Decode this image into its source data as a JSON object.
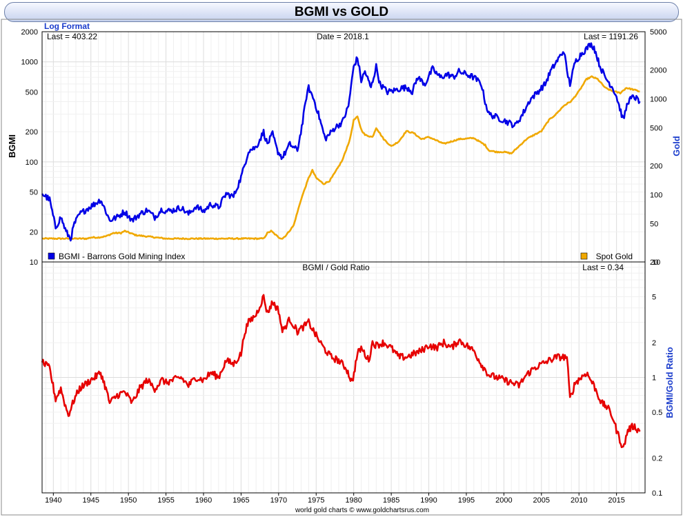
{
  "title": "BGMI vs GOLD",
  "footer": "world gold charts © www.goldchartsrus.com",
  "chart_data": [
    {
      "type": "line",
      "panel": "top",
      "format_label": "Log Format",
      "last_left": "Last = 403.22",
      "date_label": "Date = 2018.1",
      "last_right": "Last = 1191.26",
      "ylabel_left": "BGMI",
      "ylabel_right": "Gold",
      "yscale": "log",
      "ylim_left": [
        10,
        2000
      ],
      "ylim_right": [
        20,
        5000
      ],
      "yticks_left": [
        "2000",
        "1000",
        "500",
        "200",
        "100",
        "50",
        "20",
        "10"
      ],
      "yticks_right": [
        "5000",
        "2000",
        "1000",
        "500",
        "200",
        "100",
        "50",
        "20"
      ],
      "legend_left": "BGMI - Barrons Gold Mining Index",
      "legend_right": "Spot Gold",
      "legend_placement": "bottom",
      "colors": {
        "bgmi": "#0000e6",
        "gold": "#f0a800"
      },
      "series": [
        {
          "name": "BGMI - Barrons Gold Mining Index",
          "axis": "left",
          "x": [
            1938.5,
            1939.5,
            1940.3,
            1941,
            1941.7,
            1942.3,
            1942.8,
            1943.5,
            1944.5,
            1945.5,
            1946.3,
            1947,
            1947.5,
            1948.5,
            1949.5,
            1950.5,
            1951.5,
            1952.5,
            1953.5,
            1954.5,
            1955,
            1956,
            1957,
            1958,
            1959,
            1960,
            1961,
            1962,
            1963,
            1964,
            1965,
            1965.5,
            1966,
            1967,
            1968,
            1968.5,
            1969.2,
            1969.8,
            1970.5,
            1971.5,
            1972.5,
            1973.2,
            1973.7,
            1974,
            1974.7,
            1975.3,
            1976.2,
            1976.8,
            1977.5,
            1978.5,
            1979.3,
            1980,
            1980.5,
            1981,
            1981.5,
            1982.3,
            1983,
            1983.5,
            1984.5,
            1985.5,
            1986.5,
            1987.3,
            1987.8,
            1988.5,
            1989.5,
            1990.5,
            1991.5,
            1992.5,
            1993.3,
            1994,
            1995,
            1996,
            1997,
            1997.5,
            1998,
            1999,
            2000,
            2001,
            2001.5,
            2002.5,
            2003.5,
            2004.5,
            2005.5,
            2006.2,
            2007,
            2008,
            2008.4,
            2008.8,
            2009.5,
            2010.3,
            2011,
            2011.5,
            2012,
            2012.8,
            2013.5,
            2014.5,
            2015,
            2015.9,
            2016.5,
            2017.3,
            2018.1
          ],
          "values": [
            48,
            42,
            22,
            28,
            20,
            17,
            24,
            30,
            34,
            38,
            42,
            32,
            26,
            28,
            32,
            26,
            30,
            33,
            28,
            34,
            32,
            33,
            35,
            30,
            36,
            32,
            38,
            35,
            48,
            45,
            70,
            95,
            130,
            140,
            200,
            150,
            190,
            130,
            110,
            150,
            130,
            250,
            450,
            550,
            420,
            300,
            170,
            190,
            220,
            250,
            360,
            900,
            1100,
            650,
            800,
            550,
            900,
            600,
            500,
            520,
            550,
            550,
            500,
            700,
            600,
            850,
            700,
            750,
            700,
            800,
            750,
            700,
            600,
            400,
            300,
            280,
            260,
            240,
            230,
            300,
            420,
            500,
            600,
            800,
            1000,
            1300,
            800,
            600,
            1000,
            1200,
            1350,
            1500,
            1400,
            900,
            700,
            550,
            450,
            260,
            400,
            450,
            403.22
          ]
        },
        {
          "name": "Spot Gold",
          "axis": "right",
          "x": [
            1938.5,
            1943,
            1944.5,
            1945,
            1946,
            1947,
            1948,
            1949,
            1949.5,
            1951,
            1955,
            1960,
            1965,
            1967,
            1968,
            1968.5,
            1969,
            1970,
            1970.5,
            1971,
            1972,
            1973,
            1974,
            1974.5,
            1975,
            1976,
            1976.8,
            1977.5,
            1978.5,
            1979.5,
            1980,
            1980.5,
            1981,
            1981.5,
            1982.5,
            1983,
            1984,
            1985,
            1986,
            1987,
            1988,
            1989,
            1990,
            1992,
            1994,
            1996,
            1997.5,
            1998,
            1999,
            2000,
            2001,
            2002,
            2003,
            2004,
            2005,
            2006,
            2007,
            2008,
            2009,
            2010,
            2011,
            2011.7,
            2012.5,
            2013.5,
            2014.5,
            2015.5,
            2016.3,
            2017.2,
            2018.1
          ],
          "values": [
            35,
            35,
            35,
            36,
            36,
            37,
            40,
            40,
            42,
            38,
            35,
            35,
            35,
            35,
            35,
            40,
            42,
            36,
            35,
            38,
            48,
            90,
            150,
            180,
            150,
            130,
            140,
            170,
            230,
            380,
            600,
            650,
            480,
            420,
            400,
            500,
            380,
            320,
            360,
            460,
            440,
            380,
            400,
            340,
            380,
            390,
            330,
            290,
            280,
            280,
            270,
            320,
            380,
            420,
            460,
            600,
            700,
            850,
            950,
            1200,
            1600,
            1700,
            1600,
            1300,
            1200,
            1150,
            1300,
            1250,
            1191.26
          ]
        }
      ]
    },
    {
      "type": "line",
      "panel": "bottom",
      "title": "BGMI / Gold Ratio",
      "last_right": "Last = 0.34",
      "ylabel_right": "BGMI/Gold Ratio",
      "yscale": "log",
      "ylim": [
        0.1,
        10
      ],
      "yticks": [
        "10",
        "5",
        "2",
        "1",
        "0.5",
        "0.2",
        "0.1"
      ],
      "color": "#e60000",
      "x_ticks": [
        "1940",
        "1945",
        "1950",
        "1955",
        "1960",
        "1965",
        "1970",
        "1975",
        "1980",
        "1985",
        "1990",
        "1995",
        "2000",
        "2005",
        "2010",
        "2015"
      ],
      "xlim": [
        1938.5,
        2018.8
      ],
      "series": [
        {
          "name": "BGMI / Gold Ratio",
          "x": [
            1938.5,
            1939.5,
            1940.3,
            1941,
            1941.5,
            1942,
            1942.8,
            1943.5,
            1944.5,
            1945.5,
            1946.3,
            1947,
            1947.5,
            1948.5,
            1949.5,
            1950.5,
            1951.5,
            1952.5,
            1953.5,
            1954.5,
            1955,
            1956,
            1957,
            1958,
            1959,
            1960,
            1961,
            1962,
            1963,
            1964,
            1965,
            1965.5,
            1966,
            1967,
            1968,
            1968.5,
            1969.2,
            1970,
            1970.5,
            1971.5,
            1972.5,
            1973.5,
            1974,
            1975,
            1976,
            1977,
            1978,
            1979,
            1979.8,
            1980.5,
            1981,
            1982,
            1982.5,
            1983,
            1984,
            1985,
            1986,
            1987,
            1988,
            1989,
            1990,
            1991,
            1992,
            1993,
            1994,
            1995,
            1996,
            1997,
            1998,
            1999,
            2000,
            2001,
            2002,
            2003,
            2004,
            2005,
            2006,
            2007,
            2008,
            2008.4,
            2008.8,
            2009.5,
            2010.3,
            2011,
            2012,
            2013,
            2013.8,
            2014.5,
            2015,
            2015.9,
            2016.5,
            2017.3,
            2018.1
          ],
          "values": [
            1.35,
            1.2,
            0.65,
            0.8,
            0.6,
            0.47,
            0.65,
            0.8,
            0.9,
            1.0,
            1.1,
            0.8,
            0.6,
            0.7,
            0.75,
            0.6,
            0.8,
            0.95,
            0.8,
            0.95,
            0.9,
            0.95,
            1.0,
            0.85,
            1.0,
            0.95,
            1.1,
            1.0,
            1.4,
            1.3,
            1.6,
            2.5,
            3.0,
            3.5,
            5.0,
            3.6,
            4.5,
            3.8,
            2.5,
            3.2,
            2.5,
            2.8,
            3.0,
            2.3,
            1.8,
            1.5,
            1.4,
            1.2,
            0.9,
            1.6,
            1.8,
            1.4,
            2.0,
            1.9,
            2.0,
            1.8,
            1.5,
            1.5,
            1.6,
            1.7,
            1.9,
            1.8,
            2.0,
            1.8,
            2.1,
            1.9,
            1.7,
            1.3,
            1.05,
            1.0,
            0.95,
            0.9,
            0.85,
            1.05,
            1.2,
            1.3,
            1.4,
            1.5,
            1.5,
            1.5,
            0.65,
            0.9,
            1.0,
            1.1,
            0.85,
            0.6,
            0.55,
            0.45,
            0.35,
            0.24,
            0.35,
            0.38,
            0.34
          ]
        }
      ]
    }
  ]
}
